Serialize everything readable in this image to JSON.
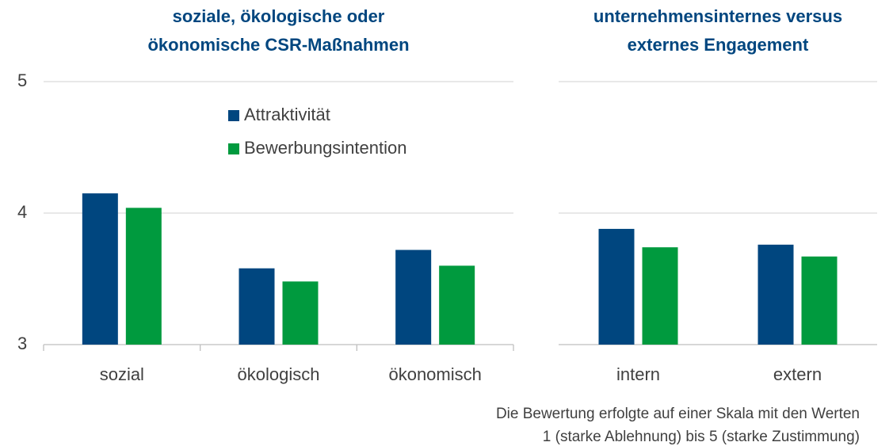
{
  "chart_data": [
    {
      "type": "bar",
      "title": [
        "soziale, ökologische oder",
        "ökonomische CSR-Maßnahmen"
      ],
      "categories": [
        "sozial",
        "ökologisch",
        "ökonomisch"
      ],
      "series": [
        {
          "name": "Attraktivität",
          "color": "#00467f",
          "values": [
            4.15,
            3.58,
            3.72
          ]
        },
        {
          "name": "Bewerbungsintention",
          "color": "#009a3e",
          "values": [
            4.04,
            3.48,
            3.6
          ]
        }
      ],
      "ylim": [
        3,
        5
      ],
      "yticks": [
        3,
        4,
        5
      ],
      "grid": true,
      "legend": true
    },
    {
      "type": "bar",
      "title": [
        "unternehmensinternes versus",
        "externes Engagement"
      ],
      "categories": [
        "intern",
        "extern"
      ],
      "series": [
        {
          "color": "#00467f",
          "values": [
            3.88,
            3.76
          ]
        },
        {
          "color": "#009a3e",
          "values": [
            3.74,
            3.67
          ]
        }
      ],
      "ylim": [
        3,
        5
      ],
      "yticks": [
        3,
        4,
        5
      ],
      "grid": true,
      "legend": false
    }
  ],
  "footnote": [
    "Die Bewertung erfolgte auf einer Skala mit den Werten",
    "1 (starke Ablehnung) bis 5 (starke Zustimmung)"
  ]
}
